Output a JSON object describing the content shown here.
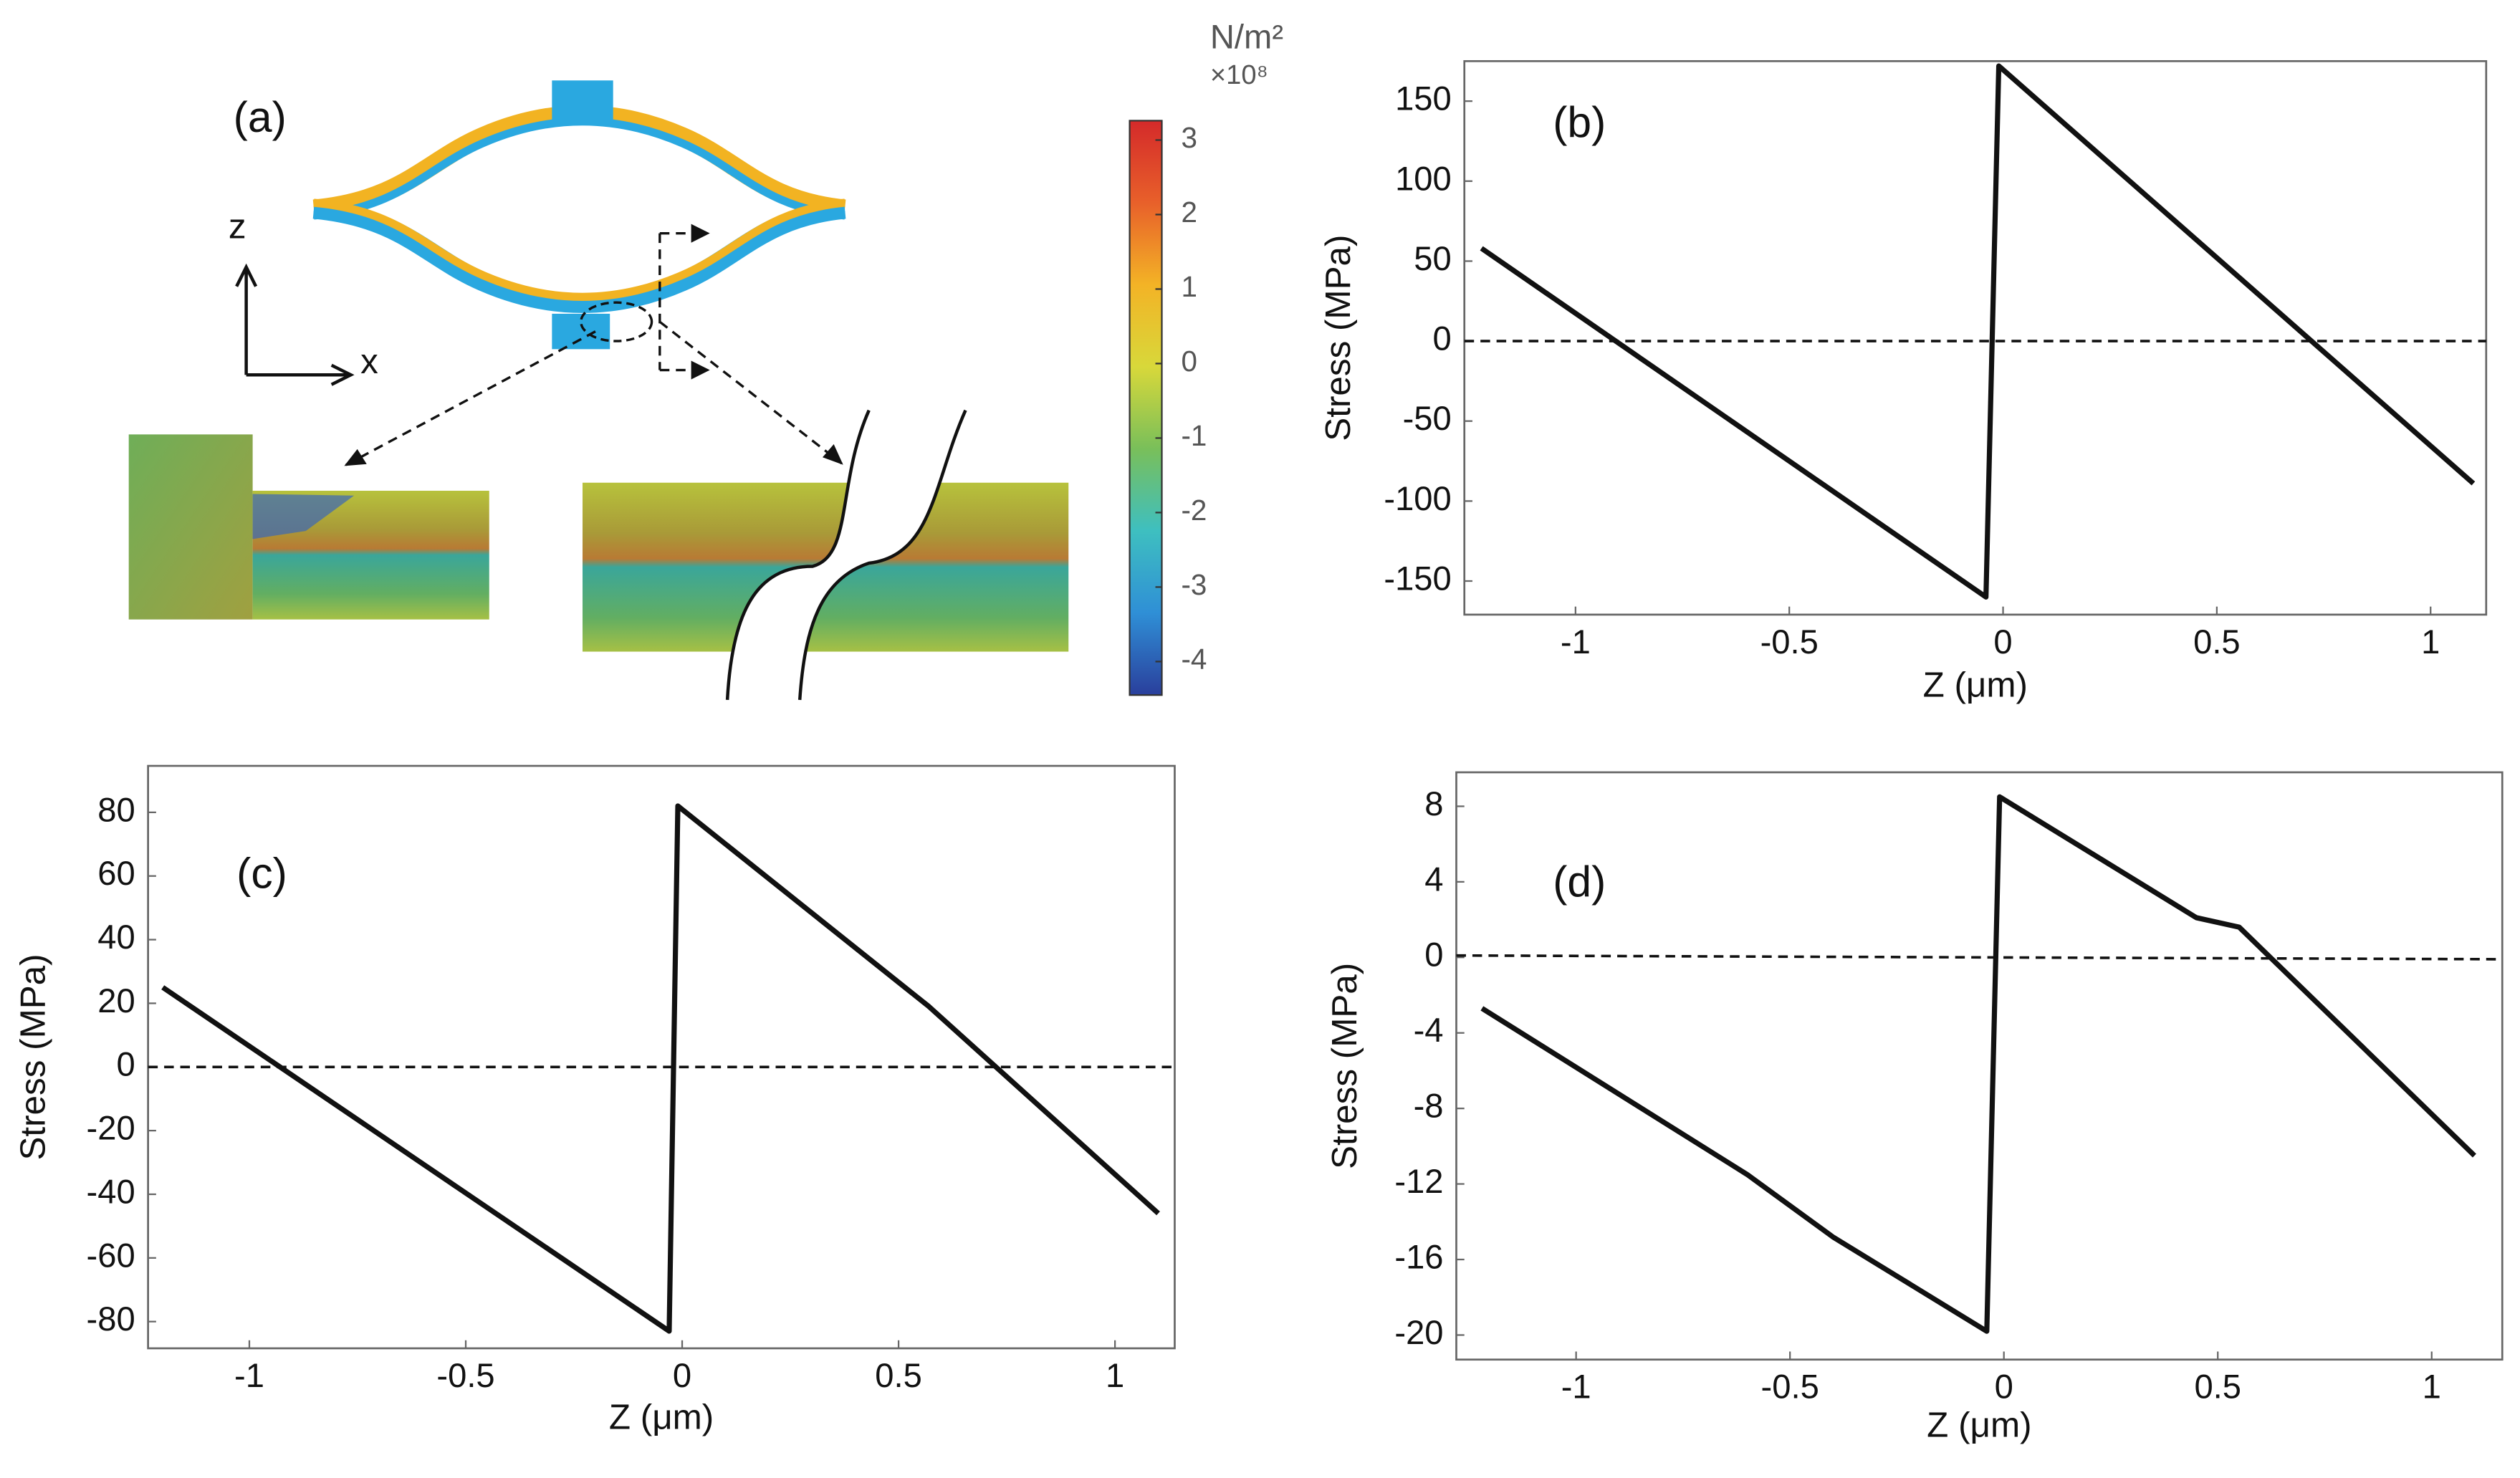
{
  "chart_data": [
    {
      "type": "colorbar",
      "panel_label": "(a)",
      "z_label": "z",
      "x_label": "x",
      "unit": "N/m²",
      "multiplier": "×10⁸",
      "ylim": [
        -4.45,
        3.26
      ],
      "yticks": [
        3,
        2,
        1,
        0,
        -1,
        -2,
        -3,
        -4
      ],
      "colors": [
        "#2a3f9c",
        "#2f8fd6",
        "#3ebfc0",
        "#79bf5a",
        "#d8d83a",
        "#f3b326",
        "#e8602a",
        "#d42a2a"
      ]
    },
    {
      "type": "line",
      "panel_label": "(b)",
      "y_label": "Stress (MPa)",
      "x_label": "Z (μm)",
      "xlim": [
        -1.26,
        1.13
      ],
      "ylim": [
        -171,
        175
      ],
      "xticks": [
        -1,
        -0.5,
        0,
        0.5,
        1
      ],
      "yticks": [
        150,
        100,
        50,
        0,
        -50,
        -100,
        -150
      ],
      "series": [
        {
          "color": "#111111",
          "dashed": false,
          "x": [
            -1.22,
            -0.04,
            -0.01,
            1.1
          ],
          "values": [
            58,
            -160,
            172,
            -89
          ]
        },
        {
          "color": "#111111",
          "dashed": true,
          "x": [
            -1.26,
            1.13
          ],
          "values": [
            0,
            0
          ]
        }
      ]
    },
    {
      "type": "line",
      "panel_label": "(c)",
      "y_label": "Stress (MPa)",
      "x_label": "Z (μm)",
      "xlim": [
        -1.234,
        1.138
      ],
      "ylim": [
        -88.4,
        94.6
      ],
      "xticks": [
        -1,
        -0.5,
        0,
        0.5,
        1
      ],
      "yticks": [
        80,
        60,
        40,
        20,
        0,
        -20,
        -40,
        -60,
        -80
      ],
      "series": [
        {
          "color": "#111111",
          "dashed": false,
          "x": [
            -1.2,
            -0.03,
            -0.01,
            0.57,
            1.1
          ],
          "values": [
            25,
            -83,
            82,
            19,
            -46
          ]
        },
        {
          "color": "#111111",
          "dashed": true,
          "x": [
            -1.234,
            1.138
          ],
          "values": [
            0,
            0
          ]
        }
      ]
    },
    {
      "type": "line",
      "panel_label": "(d)",
      "y_label": "Stress (MPa)",
      "x_label": "Z (μm)",
      "xlim": [
        -1.28,
        1.165
      ],
      "ylim": [
        -21.3,
        9.8
      ],
      "xticks": [
        -1,
        -0.5,
        0,
        0.5,
        1
      ],
      "yticks": [
        8,
        4,
        0,
        -4,
        -8,
        -12,
        -16,
        -20
      ],
      "series": [
        {
          "color": "#111111",
          "dashed": false,
          "x": [
            -1.22,
            -0.6,
            -0.4,
            -0.04,
            -0.01,
            0.45,
            0.55,
            1.1
          ],
          "values": [
            -2.7,
            -11.5,
            -14.8,
            -19.8,
            8.5,
            2.1,
            1.6,
            -10.5
          ]
        },
        {
          "color": "#111111",
          "dashed": true,
          "x": [
            -1.28,
            1.165
          ],
          "values": [
            0.1,
            -0.1
          ]
        }
      ]
    }
  ]
}
